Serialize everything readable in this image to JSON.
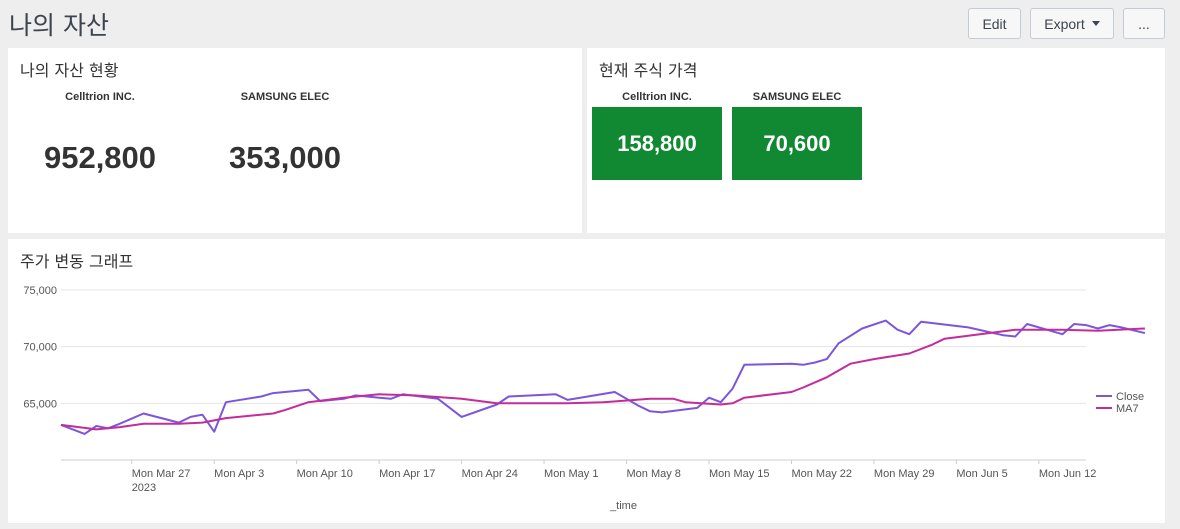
{
  "header": {
    "title": "나의 자산",
    "edit_label": "Edit",
    "export_label": "Export",
    "more_label": "..."
  },
  "assets_panel": {
    "title": "나의 자산 현황",
    "items": [
      {
        "label": "Celltrion INC.",
        "value": "952,800"
      },
      {
        "label": "SAMSUNG ELEC",
        "value": "353,000"
      }
    ]
  },
  "price_panel": {
    "title": "현재 주식 가격",
    "items": [
      {
        "label": "Celltrion INC.",
        "value": "158,800"
      },
      {
        "label": "SAMSUNG ELEC",
        "value": "70,600"
      }
    ],
    "tile_color": "#118832"
  },
  "chart_panel": {
    "title": "주가 변동 그래프"
  },
  "chart_data": {
    "type": "line",
    "xlabel": "_time",
    "x_start": "2023-03-21",
    "x_end": "2023-06-16",
    "ylim": [
      60000,
      75000
    ],
    "y_ticks": [
      {
        "value": 65000,
        "label": "65,000"
      },
      {
        "value": 70000,
        "label": "70,000"
      },
      {
        "value": 75000,
        "label": "75,000"
      }
    ],
    "x_ticks": [
      {
        "date": "2023-03-27",
        "label": "Mon Mar 27",
        "sublabel": "2023"
      },
      {
        "date": "2023-04-03",
        "label": "Mon Apr 3"
      },
      {
        "date": "2023-04-10",
        "label": "Mon Apr 10"
      },
      {
        "date": "2023-04-17",
        "label": "Mon Apr 17"
      },
      {
        "date": "2023-04-24",
        "label": "Mon Apr 24"
      },
      {
        "date": "2023-05-01",
        "label": "Mon May 1"
      },
      {
        "date": "2023-05-08",
        "label": "Mon May 8"
      },
      {
        "date": "2023-05-15",
        "label": "Mon May 15"
      },
      {
        "date": "2023-05-22",
        "label": "Mon May 22"
      },
      {
        "date": "2023-05-29",
        "label": "Mon May 29"
      },
      {
        "date": "2023-06-05",
        "label": "Mon Jun 5"
      },
      {
        "date": "2023-06-12",
        "label": "Mon Jun 12"
      }
    ],
    "legend_position": "right",
    "grid": true,
    "series": [
      {
        "name": "Close",
        "color": "#7b56db",
        "points": [
          [
            "2023-03-21",
            63100
          ],
          [
            "2023-03-23",
            62300
          ],
          [
            "2023-03-24",
            63000
          ],
          [
            "2023-03-25",
            62800
          ],
          [
            "2023-03-26",
            63200
          ],
          [
            "2023-03-28",
            64100
          ],
          [
            "2023-03-31",
            63300
          ],
          [
            "2023-04-01",
            63800
          ],
          [
            "2023-04-02",
            64000
          ],
          [
            "2023-04-03",
            62500
          ],
          [
            "2023-04-04",
            65100
          ],
          [
            "2023-04-07",
            65600
          ],
          [
            "2023-04-08",
            65900
          ],
          [
            "2023-04-11",
            66200
          ],
          [
            "2023-04-12",
            65200
          ],
          [
            "2023-04-14",
            65400
          ],
          [
            "2023-04-15",
            65700
          ],
          [
            "2023-04-18",
            65400
          ],
          [
            "2023-04-19",
            65800
          ],
          [
            "2023-04-22",
            65400
          ],
          [
            "2023-04-24",
            63800
          ],
          [
            "2023-04-27",
            64900
          ],
          [
            "2023-04-28",
            65600
          ],
          [
            "2023-05-02",
            65800
          ],
          [
            "2023-05-03",
            65300
          ],
          [
            "2023-05-07",
            66000
          ],
          [
            "2023-05-09",
            64800
          ],
          [
            "2023-05-10",
            64300
          ],
          [
            "2023-05-11",
            64200
          ],
          [
            "2023-05-14",
            64600
          ],
          [
            "2023-05-15",
            65500
          ],
          [
            "2023-05-16",
            65100
          ],
          [
            "2023-05-17",
            66300
          ],
          [
            "2023-05-18",
            68400
          ],
          [
            "2023-05-22",
            68500
          ],
          [
            "2023-05-23",
            68400
          ],
          [
            "2023-05-24",
            68600
          ],
          [
            "2023-05-25",
            68900
          ],
          [
            "2023-05-26",
            70300
          ],
          [
            "2023-05-28",
            71600
          ],
          [
            "2023-05-30",
            72300
          ],
          [
            "2023-05-31",
            71500
          ],
          [
            "2023-06-01",
            71100
          ],
          [
            "2023-06-02",
            72200
          ],
          [
            "2023-06-06",
            71700
          ],
          [
            "2023-06-09",
            71000
          ],
          [
            "2023-06-10",
            70900
          ],
          [
            "2023-06-11",
            72000
          ],
          [
            "2023-06-14",
            71100
          ],
          [
            "2023-06-15",
            72000
          ],
          [
            "2023-06-16",
            71900
          ],
          [
            "2023-06-17",
            71600
          ],
          [
            "2023-06-18",
            71900
          ],
          [
            "2023-06-19",
            71700
          ],
          [
            "2023-06-21",
            71200
          ]
        ]
      },
      {
        "name": "MA7",
        "color": "#c32c9b",
        "points": [
          [
            "2023-03-21",
            63100
          ],
          [
            "2023-03-24",
            62700
          ],
          [
            "2023-03-26",
            62900
          ],
          [
            "2023-03-28",
            63200
          ],
          [
            "2023-03-31",
            63200
          ],
          [
            "2023-04-02",
            63300
          ],
          [
            "2023-04-04",
            63700
          ],
          [
            "2023-04-08",
            64100
          ],
          [
            "2023-04-09",
            64400
          ],
          [
            "2023-04-11",
            65100
          ],
          [
            "2023-04-14",
            65500
          ],
          [
            "2023-04-17",
            65800
          ],
          [
            "2023-04-20",
            65700
          ],
          [
            "2023-04-24",
            65400
          ],
          [
            "2023-04-27",
            65000
          ],
          [
            "2023-05-03",
            65000
          ],
          [
            "2023-05-06",
            65100
          ],
          [
            "2023-05-10",
            65400
          ],
          [
            "2023-05-12",
            65400
          ],
          [
            "2023-05-13",
            65100
          ],
          [
            "2023-05-16",
            64900
          ],
          [
            "2023-05-17",
            65000
          ],
          [
            "2023-05-18",
            65500
          ],
          [
            "2023-05-22",
            66000
          ],
          [
            "2023-05-23",
            66400
          ],
          [
            "2023-05-25",
            67300
          ],
          [
            "2023-05-27",
            68500
          ],
          [
            "2023-05-29",
            68900
          ],
          [
            "2023-06-01",
            69400
          ],
          [
            "2023-06-03",
            70200
          ],
          [
            "2023-06-04",
            70700
          ],
          [
            "2023-06-07",
            71100
          ],
          [
            "2023-06-10",
            71500
          ],
          [
            "2023-06-14",
            71500
          ],
          [
            "2023-06-17",
            71400
          ],
          [
            "2023-06-21",
            71600
          ]
        ]
      }
    ]
  }
}
